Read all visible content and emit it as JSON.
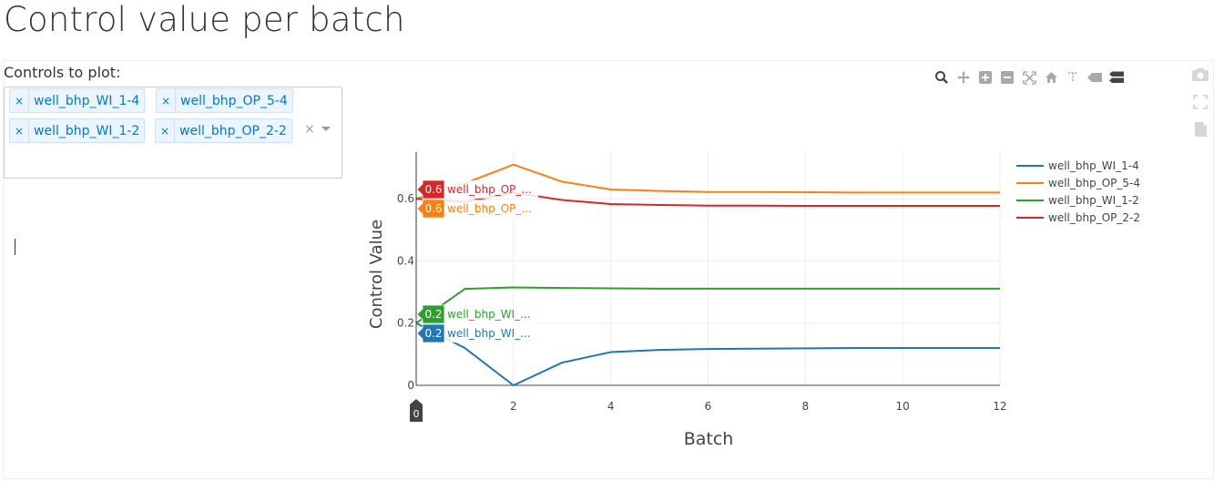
{
  "page": {
    "title": "Control value per batch"
  },
  "controls": {
    "label": "Controls to plot:",
    "selected": [
      "well_bhp_WI_1-4",
      "well_bhp_OP_5-4",
      "well_bhp_WI_1-2",
      "well_bhp_OP_2-2"
    ],
    "remove_symbol": "×",
    "clear_symbol": "×"
  },
  "modebar": {
    "icons": [
      "zoom-icon",
      "pan-icon",
      "zoom-in-icon",
      "zoom-out-icon",
      "autoscale-icon",
      "reset-axes-icon",
      "spike-lines-icon",
      "hover-closest-icon",
      "hover-compare-icon"
    ],
    "side_icons": [
      "camera-icon",
      "fullscreen-icon",
      "file-icon"
    ]
  },
  "hover": {
    "x_label": "0",
    "labels": [
      {
        "value": "0.6",
        "text": "well_bhp_OP_...",
        "series": 3
      },
      {
        "value": "0.6",
        "text": "well_bhp_OP_...",
        "series": 1
      },
      {
        "value": "0.2",
        "text": "well_bhp_WI_...",
        "series": 2
      },
      {
        "value": "0.2",
        "text": "well_bhp_WI_...",
        "series": 0
      }
    ]
  },
  "chart_data": {
    "type": "line",
    "xlabel": "Batch",
    "ylabel": "Control Value",
    "xlim": [
      0,
      12
    ],
    "ylim": [
      0,
      0.75
    ],
    "xticks": [
      0,
      2,
      4,
      6,
      8,
      10,
      12
    ],
    "yticks": [
      0,
      0.2,
      0.4,
      0.6
    ],
    "ytick_labels": [
      "0",
      "0.2",
      "0.4",
      "0.6"
    ],
    "xtick_labels": [
      "",
      "2",
      "4",
      "6",
      "8",
      "10",
      "12"
    ],
    "grid": true,
    "legend_position": "top-right",
    "x": [
      0,
      1,
      2,
      3,
      4,
      5,
      6,
      7,
      8,
      9,
      10,
      11,
      12
    ],
    "series": [
      {
        "name": "well_bhp_WI_1-4",
        "color": "#1f77b4",
        "values": [
          0.2,
          0.12,
          0.0,
          0.073,
          0.107,
          0.114,
          0.117,
          0.118,
          0.119,
          0.12,
          0.12,
          0.12,
          0.12
        ]
      },
      {
        "name": "well_bhp_OP_5-4",
        "color": "#ff7f0e",
        "values": [
          0.6,
          0.65,
          0.71,
          0.655,
          0.63,
          0.625,
          0.622,
          0.622,
          0.621,
          0.62,
          0.62,
          0.62,
          0.62
        ]
      },
      {
        "name": "well_bhp_WI_1-2",
        "color": "#2ca02c",
        "values": [
          0.2,
          0.31,
          0.315,
          0.313,
          0.312,
          0.311,
          0.311,
          0.311,
          0.311,
          0.311,
          0.311,
          0.311,
          0.311
        ]
      },
      {
        "name": "well_bhp_OP_2-2",
        "color": "#d62728",
        "values": [
          0.6,
          0.59,
          0.62,
          0.596,
          0.583,
          0.58,
          0.578,
          0.578,
          0.577,
          0.577,
          0.577,
          0.577,
          0.577
        ]
      }
    ]
  }
}
